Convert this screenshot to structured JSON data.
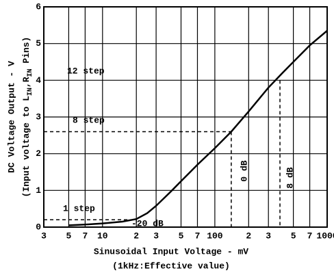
{
  "chart_data": {
    "type": "line",
    "log_x": true,
    "grid": true,
    "color": "#000000",
    "x_label": "Sinusoidal Input Voltage - mV",
    "x_label_note": "(1kHz:Effective value)",
    "y_label": "DC Voltage Output - V",
    "y_label_note": [
      "(Input voltage to L",
      "IN",
      ",R",
      "IN",
      " Pins)"
    ],
    "x": [
      5,
      7,
      10,
      15,
      20,
      25,
      30,
      40,
      50,
      70,
      100,
      140,
      200,
      300,
      400,
      500,
      700,
      1000
    ],
    "series": [
      {
        "values": [
          0.05,
          0.07,
          0.1,
          0.15,
          0.22,
          0.38,
          0.58,
          0.95,
          1.25,
          1.7,
          2.15,
          2.6,
          3.15,
          3.8,
          4.2,
          4.5,
          4.95,
          5.35
        ]
      }
    ],
    "xlim": [
      3,
      1000
    ],
    "xticks": [
      3,
      5,
      7,
      10,
      {
        "value": 20,
        "label": "2"
      },
      {
        "value": 30,
        "label": "3"
      },
      {
        "value": 50,
        "label": "5"
      },
      {
        "value": 70,
        "label": "7"
      },
      100,
      {
        "value": 200,
        "label": "2"
      },
      {
        "value": 300,
        "label": "3"
      },
      {
        "value": 500,
        "label": "5"
      },
      {
        "value": 700,
        "label": "7"
      },
      1000
    ],
    "ylim": [
      0,
      6
    ],
    "yticks": [
      0,
      1,
      2,
      3,
      4,
      5,
      6
    ],
    "guides": [
      {
        "x": 140,
        "y": 2.6,
        "h": true
      },
      {
        "x": 20,
        "y": 0.2,
        "h": true
      },
      {
        "x": 380,
        "y": 4.0,
        "h": false
      }
    ],
    "annotations": [
      "12 step",
      "8 step",
      "1 step",
      "-20 dB",
      "0 dB",
      "8 dB"
    ]
  }
}
